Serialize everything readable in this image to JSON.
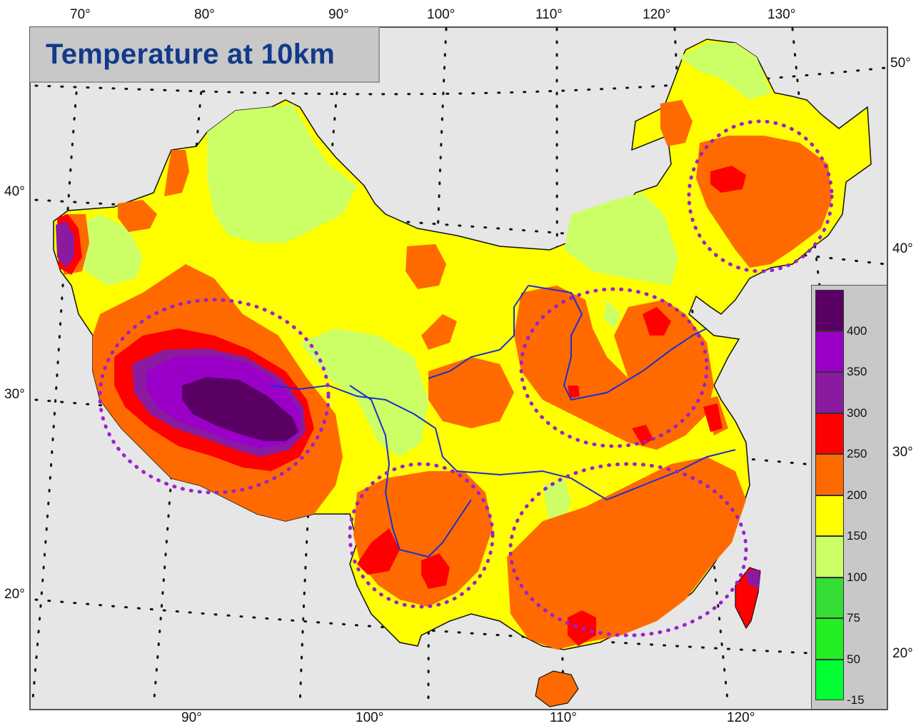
{
  "title": "Temperature at 10km",
  "ticks": {
    "top": [
      "70°",
      "80°",
      "90°",
      "100°",
      "110°",
      "120°",
      "130°"
    ],
    "bottom": [
      "90°",
      "100°",
      "110°",
      "120°"
    ],
    "left": [
      "40°",
      "30°",
      "20°"
    ],
    "right": [
      "50°",
      "40°",
      "30°",
      "20°"
    ]
  },
  "legend": {
    "labels": [
      "400",
      "350",
      "300",
      "250",
      "200",
      "150",
      "100",
      "75",
      "50",
      "-15"
    ],
    "colors": [
      "#5a0064",
      "#9a00c8",
      "#8a1aa0",
      "#ff0000",
      "#ff6a00",
      "#ffff00",
      "#ccff66",
      "#33dd33",
      "#22ee22",
      "#00ff33"
    ]
  },
  "palette": {
    "background": "#e6e6e6",
    "highlight_circles": "#9a22cc",
    "rivers": "#1a2fd0"
  }
}
